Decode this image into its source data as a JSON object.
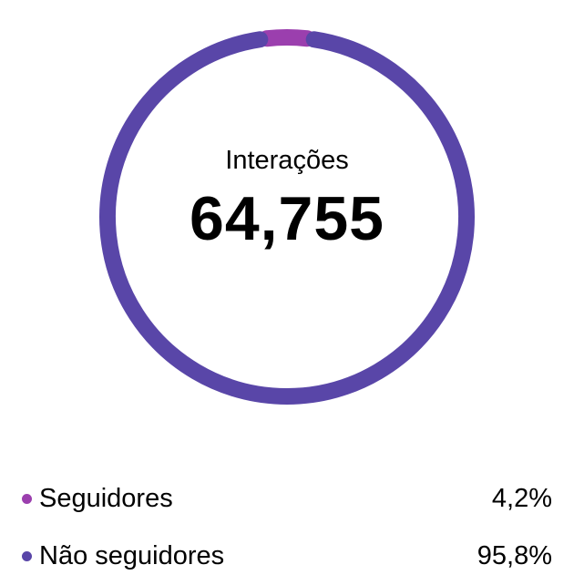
{
  "center": {
    "label": "Interações",
    "value": "64,755"
  },
  "chart_data": {
    "type": "donut",
    "segments": [
      {
        "name": "Seguidores",
        "value": 4.2,
        "color": "#9b3fae"
      },
      {
        "name": "Não seguidores",
        "value": 95.8,
        "color": "#5946a8"
      }
    ]
  },
  "legend": [
    {
      "name": "Seguidores",
      "percent": "4,2%",
      "color": "#9b3fae"
    },
    {
      "name": "Não seguidores",
      "percent": "95,8%",
      "color": "#5946a8"
    }
  ]
}
